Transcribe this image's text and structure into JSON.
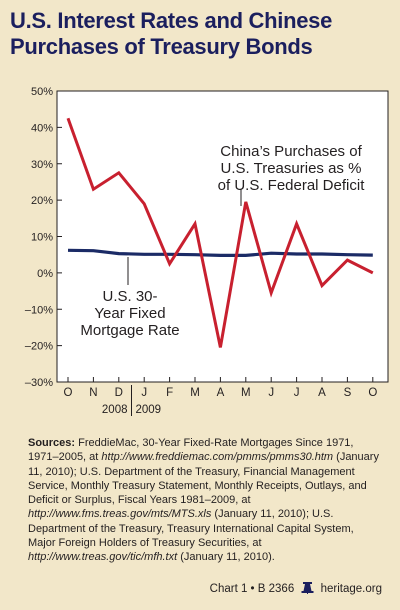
{
  "header": {
    "title_line1": "U.S. Interest Rates and Chinese",
    "title_line2": "Purchases of Treasury Bonds"
  },
  "chart_data": {
    "type": "line",
    "title": "U.S. Interest Rates and Chinese Purchases of Treasury Bonds",
    "xlabel": "",
    "ylabel": "",
    "categories": [
      "O",
      "N",
      "D",
      "J",
      "F",
      "M",
      "A",
      "M",
      "J",
      "J",
      "A",
      "S",
      "O"
    ],
    "year_labels": [
      "2008",
      "2009"
    ],
    "y_ticks": [
      "50%",
      "40%",
      "30%",
      "20%",
      "10%",
      "0%",
      "–10%",
      "–20%",
      "–30%"
    ],
    "ylim": [
      -30,
      50
    ],
    "grid": false,
    "series": [
      {
        "name": "China's Purchases of U.S. Treasuries as % of U.S. Federal Deficit",
        "label_lines": [
          "China’s Purchases of",
          "U.S. Treasuries as %",
          "of U.S. Federal Deficit"
        ],
        "color": "#c8202f",
        "values": [
          42.5,
          23,
          27.5,
          19,
          2.5,
          13.5,
          -20.5,
          19.5,
          -5.5,
          13.5,
          -3.5,
          3.5,
          0
        ]
      },
      {
        "name": "U.S. 30-Year Fixed Mortgage Rate",
        "label_lines": [
          "U.S. 30-",
          "Year Fixed",
          "Mortgage Rate"
        ],
        "color": "#1b2b66",
        "values": [
          6.2,
          6.1,
          5.3,
          5.1,
          5.1,
          5.0,
          4.8,
          4.8,
          5.4,
          5.2,
          5.2,
          5.0,
          4.9
        ]
      }
    ]
  },
  "sources": {
    "label": "Sources:",
    "t1": " FreddieMac, 30-Year Fixed-Rate Mortgages Since 1971, 1971–2005, at ",
    "u1": "http://www.freddiemac.com/pmms/pmms30.htm",
    "t2": " (January 11, 2010); U.S. Department of the Treasury, Financial Management Service, Monthly Treasury Statement, Monthly Receipts, Outlays, and Deficit or Surplus, Fiscal Years 1981–2009, at ",
    "u2": "http://www.fms.treas.gov/mts/MTS.xls",
    "t3": " (January 11, 2010); U.S. Department of the Treasury, Treasury International Capital System, Major Foreign Holders of Treasury Securities, at ",
    "u3": "http://www.treas.gov/tic/mfh.txt",
    "t4": " (January 11, 2010)."
  },
  "footer": {
    "chart_id": "Chart 1 • B 2366",
    "site": "heritage.org",
    "icon": "liberty-bell-icon"
  }
}
